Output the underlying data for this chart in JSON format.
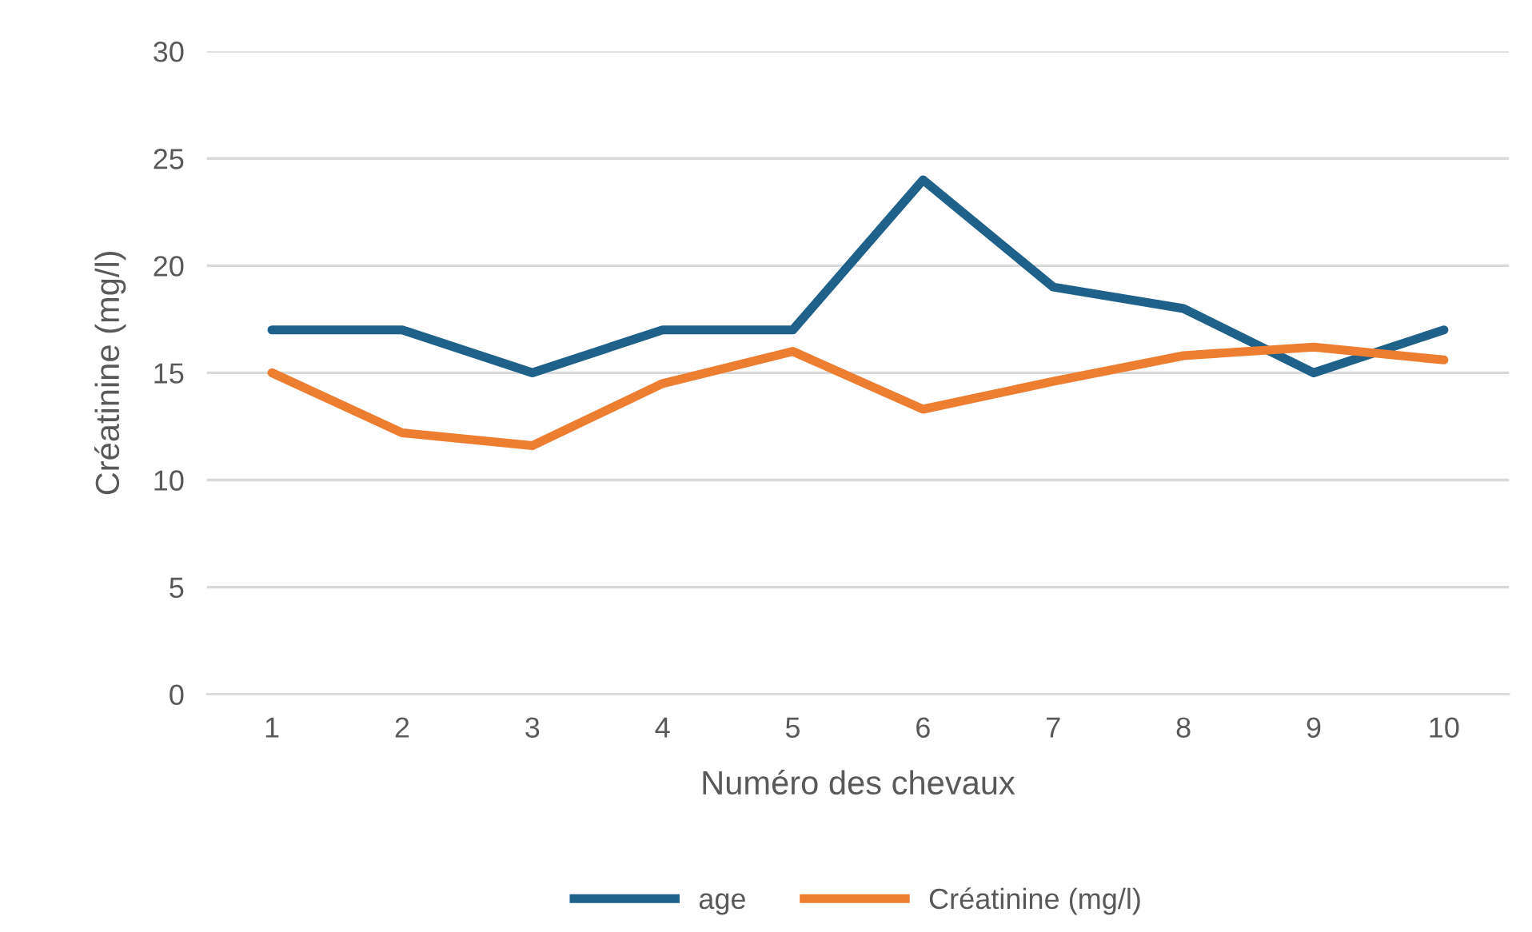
{
  "chart_data": {
    "type": "line",
    "ylabel": "Créatinine (mg/l)",
    "xlabel": "Numéro des chevaux",
    "categories": [
      "1",
      "2",
      "3",
      "4",
      "5",
      "6",
      "7",
      "8",
      "9",
      "10"
    ],
    "series": [
      {
        "name": "age",
        "color": "#1f6188",
        "values": [
          17,
          17,
          15,
          17,
          17,
          24,
          19,
          18,
          15,
          17
        ]
      },
      {
        "name": "Créatinine (mg/l)",
        "color": "#ed7d31",
        "values": [
          15.0,
          12.2,
          11.6,
          14.5,
          16.0,
          13.3,
          14.6,
          15.8,
          16.2,
          15.6
        ]
      }
    ],
    "ylim": [
      0,
      30
    ],
    "yticks": [
      0,
      5,
      10,
      15,
      20,
      25,
      30
    ],
    "grid": "y",
    "legend": "bottom",
    "marker": "none",
    "line_style": "solid"
  }
}
